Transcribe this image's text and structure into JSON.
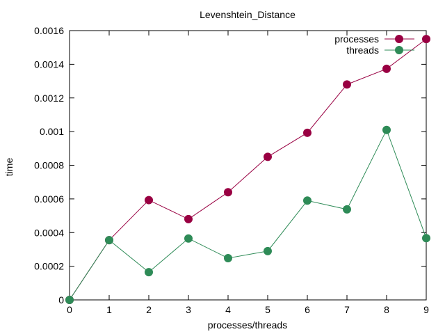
{
  "chart_data": {
    "type": "line",
    "title": "Levenshtein_Distance",
    "xlabel": "processes/threads",
    "ylabel": "time",
    "x": [
      0,
      1,
      2,
      3,
      4,
      5,
      6,
      7,
      8,
      9
    ],
    "xlim": [
      0,
      9
    ],
    "ylim": [
      0,
      0.0016
    ],
    "xticks": [
      "0",
      "1",
      "2",
      "3",
      "4",
      "5",
      "6",
      "7",
      "8",
      "9"
    ],
    "yticks": [
      {
        "value": 0,
        "label": "0"
      },
      {
        "value": 0.0002,
        "label": "0.0002"
      },
      {
        "value": 0.0004,
        "label": "0.0004"
      },
      {
        "value": 0.0006,
        "label": "0.0006"
      },
      {
        "value": 0.0008,
        "label": "0.0008"
      },
      {
        "value": 0.001,
        "label": "0.001"
      },
      {
        "value": 0.0012,
        "label": "0.0012"
      },
      {
        "value": 0.0014,
        "label": "0.0014"
      },
      {
        "value": 0.0016,
        "label": "0.0016"
      }
    ],
    "grid": false,
    "legend_position": "top-right",
    "series": [
      {
        "name": "processes",
        "color": "#990042",
        "values": [
          0,
          0.000355,
          0.000593,
          0.00048,
          0.00064,
          0.00085,
          0.000993,
          0.00128,
          0.001373,
          0.00155
        ]
      },
      {
        "name": "threads",
        "color": "#2e8b57",
        "values": [
          0,
          0.000355,
          0.000165,
          0.000365,
          0.000248,
          0.00029,
          0.00059,
          0.000538,
          0.00101,
          0.000367
        ]
      }
    ]
  }
}
